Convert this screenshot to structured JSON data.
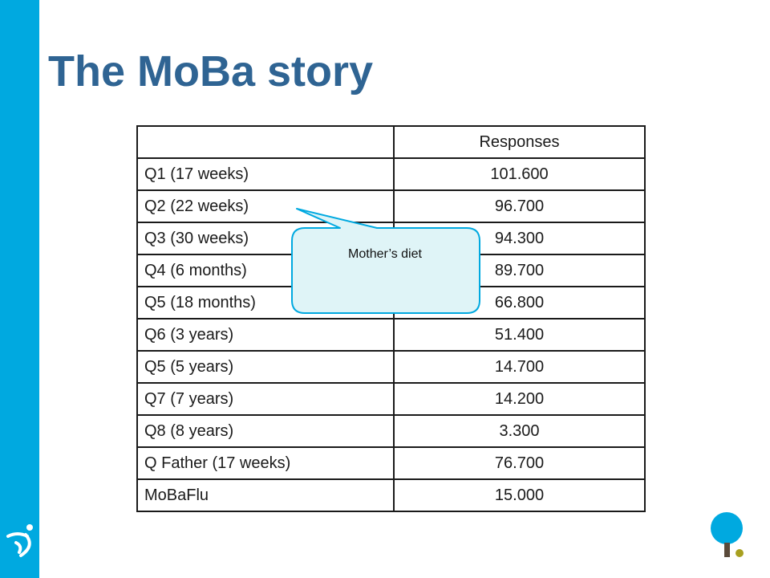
{
  "slide": {
    "title": "The MoBa story",
    "accent_color": "#00a9e0",
    "title_color": "#2f6493"
  },
  "table": {
    "headers": [
      "",
      "Responses"
    ],
    "rows": [
      {
        "label": "Q1 (17 weeks)",
        "value": "101.600"
      },
      {
        "label": "Q2 (22 weeks)",
        "value": "96.700"
      },
      {
        "label": "Q3 (30 weeks)",
        "value": "94.300"
      },
      {
        "label": "Q4 (6 months)",
        "value": "89.700"
      },
      {
        "label": "Q5 (18 months)",
        "value": "66.800"
      },
      {
        "label": "Q6 (3 years)",
        "value": "51.400"
      },
      {
        "label": "Q5 (5 years)",
        "value": "14.700"
      },
      {
        "label": "Q7 (7 years)",
        "value": "14.200"
      },
      {
        "label": "Q8 (8 years)",
        "value": "3.300"
      },
      {
        "label": "Q Father (17 weeks)",
        "value": "76.700"
      },
      {
        "label": "MoBaFlu",
        "value": "15.000"
      }
    ]
  },
  "callout": {
    "text": "Mother’s diet",
    "fill": "#dff4f7",
    "stroke": "#00a9e0"
  },
  "icons": {
    "side_logo": "person-figure-icon",
    "corner_logo": "tree-icon"
  }
}
